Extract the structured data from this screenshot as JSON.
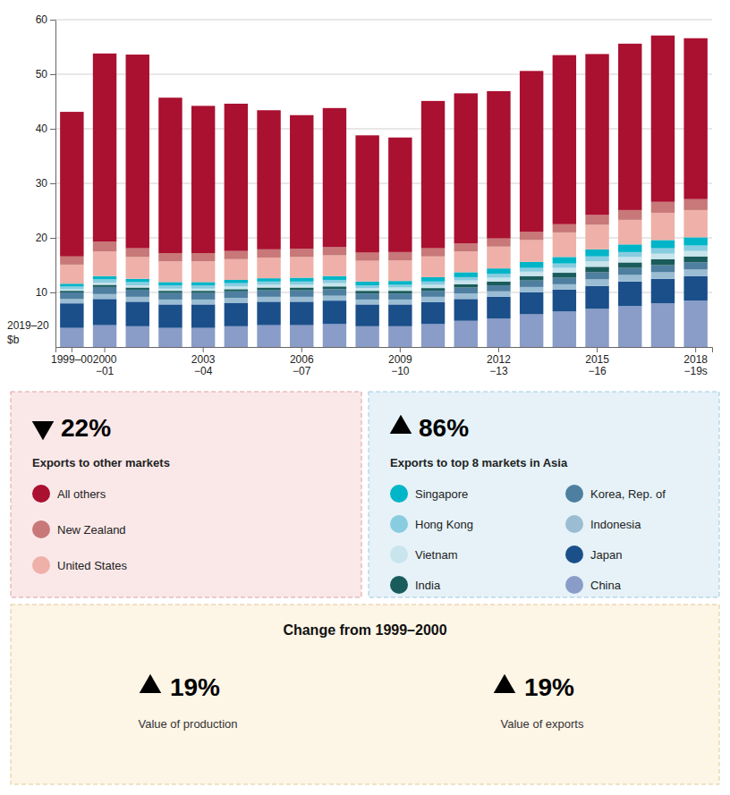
{
  "chart_data": {
    "type": "bar",
    "stacked": true,
    "grid": true,
    "ylabel": "2019–20\n$b",
    "categories": [
      "1999–00",
      "2000\n−01",
      null,
      null,
      "2003\n−04",
      null,
      null,
      "2006\n−07",
      null,
      null,
      "2009\n−10",
      null,
      null,
      "2012\n−13",
      null,
      null,
      "2015\n−16",
      null,
      null,
      "2018\n−19s"
    ],
    "ylim": [
      0,
      60
    ],
    "yticks": [
      10,
      20,
      30,
      40,
      50,
      60
    ],
    "series": [
      {
        "name": "China",
        "color": "#8A9CC8",
        "values": [
          3.5,
          4.0,
          3.8,
          3.5,
          3.5,
          3.8,
          4.0,
          4.0,
          4.2,
          3.8,
          3.8,
          4.2,
          4.8,
          5.2,
          6.0,
          6.5,
          7.0,
          7.5,
          8.0,
          8.5
        ]
      },
      {
        "name": "Japan",
        "color": "#1A4F8A",
        "values": [
          4.5,
          4.8,
          4.5,
          4.3,
          4.3,
          4.3,
          4.3,
          4.3,
          4.3,
          4.0,
          4.0,
          4.0,
          4.0,
          4.0,
          4.0,
          4.0,
          4.2,
          4.5,
          4.5,
          4.5
        ]
      },
      {
        "name": "Indonesia",
        "color": "#9BBDD4",
        "values": [
          0.8,
          0.9,
          0.9,
          0.9,
          0.9,
          0.9,
          0.9,
          0.9,
          0.9,
          0.9,
          0.9,
          1.0,
          1.0,
          1.0,
          1.0,
          1.0,
          1.2,
          1.2,
          1.2,
          1.2
        ]
      },
      {
        "name": "Korea, Rep. of",
        "color": "#4E7FA0",
        "values": [
          1.2,
          1.3,
          1.3,
          1.2,
          1.2,
          1.2,
          1.2,
          1.2,
          1.2,
          1.1,
          1.1,
          1.1,
          1.1,
          1.1,
          1.2,
          1.2,
          1.3,
          1.3,
          1.3,
          1.3
        ]
      },
      {
        "name": "India",
        "color": "#1A5C5C",
        "values": [
          0.3,
          0.4,
          0.4,
          0.4,
          0.4,
          0.4,
          0.5,
          0.5,
          0.5,
          0.5,
          0.5,
          0.5,
          0.6,
          0.7,
          0.8,
          0.9,
          1.0,
          1.0,
          1.1,
          1.1
        ]
      },
      {
        "name": "Vietnam",
        "color": "#C8E4EC",
        "values": [
          0.3,
          0.4,
          0.4,
          0.4,
          0.4,
          0.5,
          0.5,
          0.5,
          0.6,
          0.5,
          0.6,
          0.6,
          0.7,
          0.7,
          0.8,
          0.9,
          1.0,
          1.0,
          1.0,
          1.0
        ]
      },
      {
        "name": "Hong Kong",
        "color": "#88CCE0",
        "values": [
          0.5,
          0.6,
          0.6,
          0.6,
          0.6,
          0.6,
          0.6,
          0.6,
          0.6,
          0.5,
          0.5,
          0.6,
          0.6,
          0.7,
          0.7,
          0.8,
          0.9,
          0.9,
          1.0,
          1.0
        ]
      },
      {
        "name": "Singapore",
        "color": "#00B5C8",
        "values": [
          0.5,
          0.6,
          0.6,
          0.6,
          0.6,
          0.6,
          0.6,
          0.7,
          0.7,
          0.7,
          0.7,
          0.8,
          0.9,
          1.0,
          1.1,
          1.2,
          1.3,
          1.4,
          1.5,
          1.5
        ]
      },
      {
        "name": "United States",
        "color": "#EEB0A8",
        "values": [
          3.5,
          4.5,
          4.0,
          3.8,
          3.8,
          3.8,
          3.8,
          3.8,
          3.8,
          3.8,
          3.8,
          3.8,
          3.8,
          4.0,
          4.0,
          4.5,
          4.5,
          4.5,
          5.0,
          5.0
        ]
      },
      {
        "name": "New Zealand",
        "color": "#C87878",
        "values": [
          1.5,
          1.8,
          1.6,
          1.5,
          1.5,
          1.5,
          1.5,
          1.5,
          1.5,
          1.5,
          1.5,
          1.5,
          1.5,
          1.5,
          1.5,
          1.5,
          1.8,
          1.8,
          2.0,
          2.0
        ]
      },
      {
        "name": "All others",
        "color": "#AA1030",
        "values": [
          26.5,
          34.5,
          35.5,
          28.5,
          27.0,
          27.0,
          25.5,
          24.5,
          25.5,
          21.5,
          21.0,
          27.0,
          27.5,
          27.0,
          29.5,
          31.0,
          29.5,
          30.5,
          30.5,
          29.5
        ]
      }
    ],
    "annotations": [
      {
        "value": 22,
        "label": "22%",
        "direction": "down",
        "text": "Exports to other markets",
        "members": [
          10,
          9,
          8
        ],
        "color": "#FAE8E8",
        "border_color": "#DDA0A0"
      },
      {
        "value": 86,
        "label": "86%",
        "direction": "up",
        "text": "Exports to top 8 markets in Asia",
        "members": [
          7,
          6,
          5,
          4,
          3,
          2,
          1,
          0
        ],
        "color": "#E6F2F8",
        "border_color": "#A0C8E0"
      },
      {
        "text": "Change from 1999–2000",
        "color": "#FDF5E6",
        "border_color": "#E0C898",
        "items": [
          {
            "value": 19,
            "label": "19%",
            "direction": "up",
            "text": "Value of production"
          },
          {
            "value": 19,
            "label": "19%",
            "direction": "up",
            "text": "Value of exports"
          }
        ]
      }
    ]
  }
}
